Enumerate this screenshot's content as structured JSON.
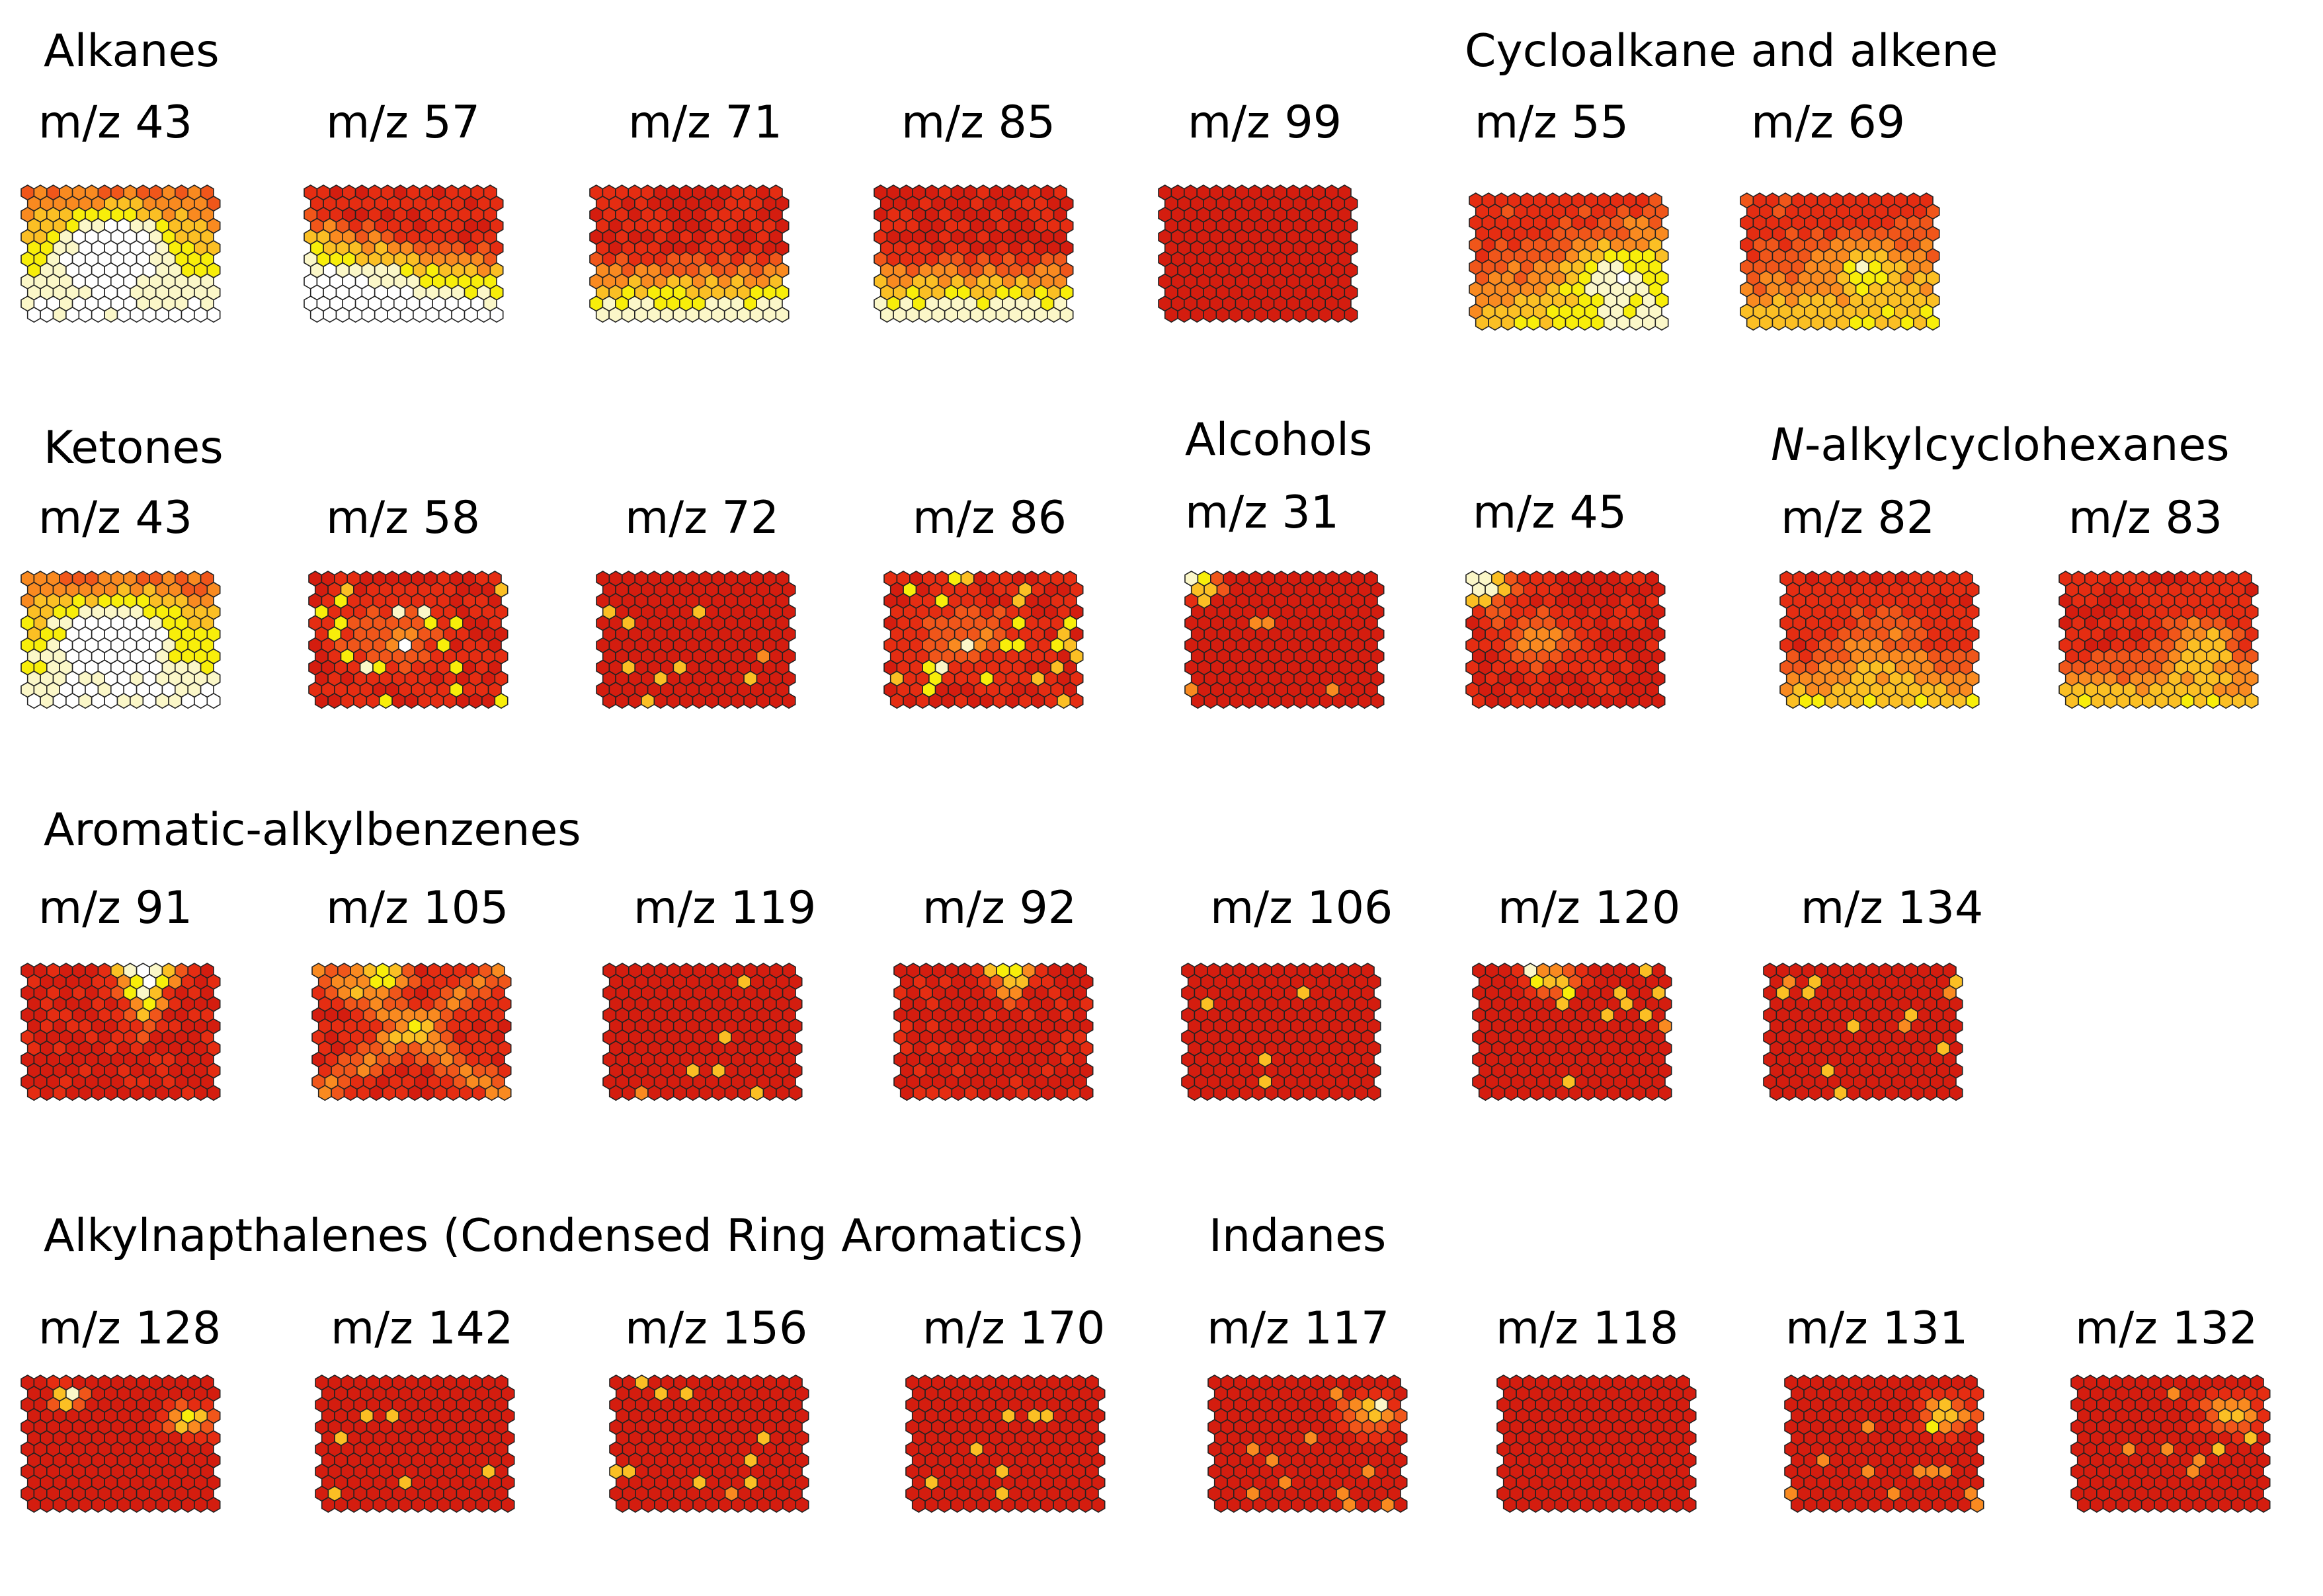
{
  "figure_type": "self-organizing-map component planes",
  "colors": {
    "scale": [
      "#d41d0f",
      "#e52d12",
      "#f0561a",
      "#f98a20",
      "#fbbf24",
      "#f8ee0a",
      "#fbf7c8",
      "#ffffff"
    ],
    "outline": "#222222"
  },
  "groups": [
    {
      "title": "Alkanes",
      "title_emph": "",
      "planes": [
        {
          "label": "m/z 43",
          "pattern": "center_white"
        },
        {
          "label": "m/z 57",
          "pattern": "bottomleft_white"
        },
        {
          "label": "m/z 71",
          "pattern": "bottom_yellow"
        },
        {
          "label": "m/z 85",
          "pattern": "bottom_yellow"
        },
        {
          "label": "m/z 99",
          "pattern": "red"
        }
      ]
    },
    {
      "title": "Cycloalkane and alkene",
      "title_emph": "",
      "planes": [
        {
          "label": "m/z 55",
          "pattern": "diag_yellow"
        },
        {
          "label": "m/z 69",
          "pattern": "diag_yellow_soft"
        }
      ]
    },
    {
      "title": "Ketones",
      "title_emph": "",
      "planes": [
        {
          "label": "m/z 43",
          "pattern": "center_white"
        },
        {
          "label": "m/z 58",
          "pattern": "spots"
        },
        {
          "label": "m/z 72",
          "pattern": "red_spots"
        },
        {
          "label": "m/z 86",
          "pattern": "spots"
        }
      ]
    },
    {
      "title": "Alcohols",
      "title_emph": "",
      "planes": [
        {
          "label": "m/z 31",
          "pattern": "red_corner"
        },
        {
          "label": "m/z 45",
          "pattern": "topleft_orange"
        }
      ]
    },
    {
      "title": "-alkylcyclohexanes",
      "title_emph": "N",
      "planes": [
        {
          "label": "m/z 82",
          "pattern": "bottom_orange"
        },
        {
          "label": "m/z 83",
          "pattern": "bottom_orange_right"
        }
      ]
    },
    {
      "title": "Aromatic-alkylbenzenes",
      "title_emph": "",
      "planes": [
        {
          "label": "m/z 91",
          "pattern": "top_v_white"
        },
        {
          "label": "m/z 105",
          "pattern": "x_orange"
        },
        {
          "label": "m/z 119",
          "pattern": "red_spots"
        },
        {
          "label": "m/z 92",
          "pattern": "top_v_small"
        },
        {
          "label": "m/z 106",
          "pattern": "red_spots"
        },
        {
          "label": "m/z 120",
          "pattern": "red_spots_top"
        },
        {
          "label": "m/z 134",
          "pattern": "red_spots"
        }
      ]
    },
    {
      "title": "Alkylnapthalenes (Condensed Ring Aromatics)",
      "title_emph": "",
      "planes": [
        {
          "label": "m/z 128",
          "pattern": "two_spots"
        },
        {
          "label": "m/z 142",
          "pattern": "red_spots"
        },
        {
          "label": "m/z 156",
          "pattern": "red_spots"
        },
        {
          "label": "m/z 170",
          "pattern": "red_spots"
        }
      ]
    },
    {
      "title": "Indanes",
      "title_emph": "",
      "planes": [
        {
          "label": "m/z 117",
          "pattern": "right_spots"
        },
        {
          "label": "m/z 118",
          "pattern": "red"
        },
        {
          "label": "m/z 131",
          "pattern": "right_spots"
        },
        {
          "label": "m/z 132",
          "pattern": "right_spots"
        }
      ]
    }
  ]
}
